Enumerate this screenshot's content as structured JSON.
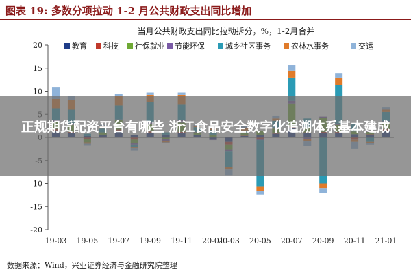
{
  "figure": {
    "title": "图表 19: 多数分项拉动 1-2 月公共财政支出同比增加",
    "source": "数据来源：Wind，兴业证券经济与金融研究院整理"
  },
  "overlay": {
    "headline": "正规期货配资平台有哪些 浙江食品安全数字化追溯体系基本建成"
  },
  "chart_data": {
    "type": "bar",
    "stacked": true,
    "title": "当月公共财政支出同比拉动拆分，%，1-2月合并",
    "xlabel": "",
    "ylabel": "",
    "ylim": [
      -20,
      20
    ],
    "yticks": [
      20,
      15,
      10,
      5,
      0,
      -5,
      -10,
      -15,
      -20
    ],
    "grid": false,
    "legend_position": "top",
    "x_tick_labels": [
      "19-03",
      "19-05",
      "19-07",
      "19-09",
      "19-11",
      "20-01",
      "20-03",
      "20-05",
      "20-07",
      "20-09",
      "20-11",
      "21-01"
    ],
    "categories": [
      "19-03",
      "19-04",
      "19-05",
      "19-06",
      "19-07",
      "19-08",
      "19-09",
      "19-10",
      "19-11",
      "19-12",
      "20-01",
      "20-03",
      "20-04",
      "20-05",
      "20-06",
      "20-07",
      "20-08",
      "20-09",
      "20-10",
      "20-11",
      "20-12",
      "21-01"
    ],
    "series": [
      {
        "name": "教育",
        "color": "#1f3c88",
        "values": [
          1.5,
          1.0,
          0.3,
          0.5,
          1.5,
          0.5,
          1.0,
          0.5,
          1.0,
          0.5,
          -0.5,
          -1.0,
          0.3,
          0.5,
          0.8,
          2.0,
          1.0,
          1.0,
          1.0,
          0.7,
          0.5,
          1.5
        ]
      },
      {
        "name": "科技",
        "color": "#c0392b",
        "values": [
          0.3,
          0.2,
          -0.3,
          0.1,
          0.2,
          -0.5,
          0.3,
          0.1,
          0.2,
          0.1,
          0.1,
          -0.6,
          0.1,
          -0.3,
          0.1,
          0.3,
          0.1,
          0.2,
          0.2,
          -0.3,
          0.2,
          0.3
        ]
      },
      {
        "name": "社保就业",
        "color": "#6fa935",
        "values": [
          1.5,
          1.5,
          -0.8,
          0.5,
          2.0,
          -0.7,
          1.5,
          -0.3,
          2.0,
          0.5,
          0.5,
          -1.0,
          0.5,
          1.0,
          1.0,
          5.0,
          1.0,
          3.0,
          1.5,
          0.6,
          0.5,
          1.5
        ]
      },
      {
        "name": "节能环保",
        "color": "#7a5aa6",
        "values": [
          0.5,
          0.3,
          0.0,
          -0.1,
          0.2,
          -0.4,
          0.4,
          -0.5,
          0.5,
          0.1,
          -0.1,
          -0.4,
          0.1,
          -0.3,
          0.2,
          0.6,
          -0.4,
          0.3,
          0.2,
          -0.2,
          0.1,
          0.2
        ]
      },
      {
        "name": "城乡社区事务",
        "color": "#2b9bb5",
        "values": [
          2.5,
          3.0,
          0.5,
          0.8,
          3.0,
          -0.5,
          4.5,
          0.5,
          3.5,
          1.0,
          1.0,
          -3.5,
          0.5,
          -10.0,
          1.5,
          5.0,
          2.0,
          -10.0,
          8.5,
          1.5,
          -1.0,
          2.0
        ]
      },
      {
        "name": "农林水事务",
        "color": "#e07b2a",
        "values": [
          2.0,
          2.0,
          -0.3,
          0.5,
          2.0,
          -0.3,
          1.5,
          -0.3,
          2.0,
          0.3,
          0.3,
          -0.5,
          0.5,
          -1.0,
          0.5,
          1.5,
          -0.5,
          -1.0,
          1.5,
          -0.5,
          -0.3,
          0.5
        ]
      },
      {
        "name": "交运",
        "color": "#8fb3d9",
        "values": [
          2.5,
          1.0,
          -0.3,
          0.3,
          0.5,
          -0.5,
          0.5,
          -0.2,
          0.5,
          0.2,
          0.3,
          -1.2,
          0.5,
          -0.8,
          0.5,
          1.3,
          -1.0,
          -1.0,
          1.0,
          -1.5,
          -0.3,
          0.5
        ]
      }
    ]
  }
}
